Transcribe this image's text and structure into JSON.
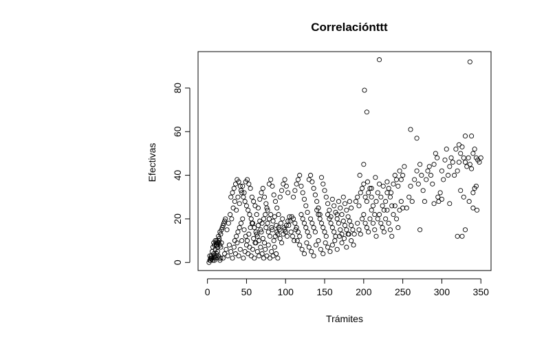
{
  "chart_data": {
    "type": "scatter",
    "title": "Correlaciónttt",
    "xlabel": "Trámites",
    "ylabel": "Efectivas",
    "xlim": [
      -12,
      363
    ],
    "ylim": [
      -3.7,
      96.7
    ],
    "xticks": [
      0,
      50,
      100,
      150,
      200,
      250,
      300,
      350
    ],
    "yticks": [
      0,
      20,
      40,
      60,
      80
    ],
    "x_tick_labels": [
      "0",
      "50",
      "100",
      "150",
      "200",
      "250",
      "300",
      "350"
    ],
    "y_tick_labels": [
      "0",
      "20",
      "40",
      "60",
      "80"
    ],
    "grid": false,
    "legend": "none",
    "marker": "open-circle",
    "point_color": "#000000",
    "points": [
      [
        2,
        0
      ],
      [
        3,
        1
      ],
      [
        4,
        2
      ],
      [
        5,
        3
      ],
      [
        6,
        2
      ],
      [
        7,
        1
      ],
      [
        8,
        4
      ],
      [
        9,
        3
      ],
      [
        10,
        6
      ],
      [
        11,
        8
      ],
      [
        12,
        10
      ],
      [
        13,
        9
      ],
      [
        14,
        12
      ],
      [
        15,
        11
      ],
      [
        16,
        14
      ],
      [
        17,
        13
      ],
      [
        18,
        15
      ],
      [
        19,
        16
      ],
      [
        20,
        17
      ],
      [
        21,
        18
      ],
      [
        22,
        19
      ],
      [
        23,
        20
      ],
      [
        9,
        8
      ],
      [
        10,
        10
      ],
      [
        11,
        9
      ],
      [
        12,
        8
      ],
      [
        13,
        7
      ],
      [
        14,
        9
      ],
      [
        15,
        10
      ],
      [
        16,
        8
      ],
      [
        17,
        7
      ],
      [
        18,
        9
      ],
      [
        8,
        2
      ],
      [
        9,
        1
      ],
      [
        10,
        2
      ],
      [
        11,
        3
      ],
      [
        12,
        4
      ],
      [
        13,
        5
      ],
      [
        14,
        3
      ],
      [
        15,
        2
      ],
      [
        16,
        1
      ],
      [
        17,
        2
      ],
      [
        6,
        5
      ],
      [
        7,
        7
      ],
      [
        8,
        9
      ],
      [
        4,
        1
      ],
      [
        5,
        2
      ],
      [
        3,
        3
      ],
      [
        20,
        2
      ],
      [
        22,
        4
      ],
      [
        24,
        6
      ],
      [
        26,
        3
      ],
      [
        28,
        8
      ],
      [
        30,
        5
      ],
      [
        32,
        2
      ],
      [
        34,
        7
      ],
      [
        36,
        4
      ],
      [
        38,
        9
      ],
      [
        40,
        3
      ],
      [
        42,
        6
      ],
      [
        44,
        10
      ],
      [
        46,
        2
      ],
      [
        48,
        5
      ],
      [
        50,
        8
      ],
      [
        52,
        4
      ],
      [
        54,
        7
      ],
      [
        56,
        3
      ],
      [
        58,
        6
      ],
      [
        60,
        2
      ],
      [
        62,
        9
      ],
      [
        64,
        5
      ],
      [
        66,
        3
      ],
      [
        68,
        7
      ],
      [
        70,
        4
      ],
      [
        72,
        2
      ],
      [
        74,
        6
      ],
      [
        76,
        3
      ],
      [
        78,
        8
      ],
      [
        80,
        2
      ],
      [
        82,
        5
      ],
      [
        84,
        3
      ],
      [
        86,
        7
      ],
      [
        88,
        4
      ],
      [
        90,
        2
      ],
      [
        25,
        15
      ],
      [
        27,
        18
      ],
      [
        29,
        22
      ],
      [
        31,
        20
      ],
      [
        33,
        25
      ],
      [
        35,
        28
      ],
      [
        37,
        24
      ],
      [
        39,
        30
      ],
      [
        41,
        27
      ],
      [
        43,
        33
      ],
      [
        45,
        35
      ],
      [
        47,
        32
      ],
      [
        49,
        37
      ],
      [
        51,
        38
      ],
      [
        53,
        36
      ],
      [
        55,
        34
      ],
      [
        57,
        30
      ],
      [
        59,
        28
      ],
      [
        61,
        26
      ],
      [
        63,
        22
      ],
      [
        65,
        25
      ],
      [
        67,
        29
      ],
      [
        69,
        32
      ],
      [
        71,
        34
      ],
      [
        73,
        30
      ],
      [
        75,
        27
      ],
      [
        77,
        24
      ],
      [
        79,
        36
      ],
      [
        81,
        38
      ],
      [
        83,
        35
      ],
      [
        85,
        31
      ],
      [
        87,
        28
      ],
      [
        89,
        25
      ],
      [
        91,
        22
      ],
      [
        93,
        30
      ],
      [
        95,
        33
      ],
      [
        97,
        36
      ],
      [
        99,
        38
      ],
      [
        101,
        35
      ],
      [
        103,
        32
      ],
      [
        30,
        30
      ],
      [
        32,
        32
      ],
      [
        34,
        34
      ],
      [
        36,
        36
      ],
      [
        38,
        38
      ],
      [
        40,
        37
      ],
      [
        42,
        35
      ],
      [
        44,
        32
      ],
      [
        46,
        30
      ],
      [
        48,
        28
      ],
      [
        50,
        26
      ],
      [
        52,
        24
      ],
      [
        54,
        22
      ],
      [
        56,
        20
      ],
      [
        58,
        18
      ],
      [
        60,
        16
      ],
      [
        62,
        14
      ],
      [
        64,
        12
      ],
      [
        66,
        10
      ],
      [
        68,
        15
      ],
      [
        70,
        18
      ],
      [
        72,
        20
      ],
      [
        74,
        22
      ],
      [
        76,
        25
      ],
      [
        78,
        14
      ],
      [
        80,
        12
      ],
      [
        82,
        16
      ],
      [
        84,
        19
      ],
      [
        86,
        21
      ],
      [
        88,
        17
      ],
      [
        90,
        13
      ],
      [
        92,
        15
      ],
      [
        94,
        18
      ],
      [
        96,
        20
      ],
      [
        98,
        16
      ],
      [
        100,
        14
      ],
      [
        102,
        12
      ],
      [
        104,
        17
      ],
      [
        106,
        19
      ],
      [
        108,
        21
      ],
      [
        35,
        10
      ],
      [
        37,
        12
      ],
      [
        39,
        14
      ],
      [
        41,
        16
      ],
      [
        43,
        18
      ],
      [
        45,
        20
      ],
      [
        47,
        15
      ],
      [
        49,
        12
      ],
      [
        51,
        10
      ],
      [
        53,
        13
      ],
      [
        55,
        16
      ],
      [
        57,
        18
      ],
      [
        59,
        11
      ],
      [
        61,
        9
      ],
      [
        63,
        13
      ],
      [
        65,
        17
      ],
      [
        67,
        19
      ],
      [
        69,
        14
      ],
      [
        71,
        11
      ],
      [
        73,
        9
      ],
      [
        75,
        16
      ],
      [
        77,
        18
      ],
      [
        79,
        20
      ],
      [
        81,
        22
      ],
      [
        83,
        15
      ],
      [
        85,
        10
      ],
      [
        87,
        12
      ],
      [
        89,
        14
      ],
      [
        91,
        16
      ],
      [
        93,
        11
      ],
      [
        95,
        9
      ],
      [
        97,
        13
      ],
      [
        99,
        15
      ],
      [
        101,
        17
      ],
      [
        103,
        19
      ],
      [
        105,
        21
      ],
      [
        107,
        14
      ],
      [
        109,
        12
      ],
      [
        111,
        10
      ],
      [
        113,
        15
      ],
      [
        110,
        30
      ],
      [
        112,
        33
      ],
      [
        114,
        36
      ],
      [
        116,
        38
      ],
      [
        118,
        40
      ],
      [
        120,
        35
      ],
      [
        122,
        32
      ],
      [
        124,
        29
      ],
      [
        126,
        26
      ],
      [
        128,
        23
      ],
      [
        130,
        38
      ],
      [
        132,
        40
      ],
      [
        134,
        37
      ],
      [
        136,
        34
      ],
      [
        138,
        31
      ],
      [
        140,
        28
      ],
      [
        142,
        25
      ],
      [
        144,
        22
      ],
      [
        146,
        39
      ],
      [
        148,
        36
      ],
      [
        150,
        33
      ],
      [
        152,
        30
      ],
      [
        154,
        27
      ],
      [
        156,
        24
      ],
      [
        158,
        21
      ],
      [
        160,
        29
      ],
      [
        162,
        26
      ],
      [
        164,
        23
      ],
      [
        166,
        20
      ],
      [
        168,
        28
      ],
      [
        170,
        25
      ],
      [
        172,
        22
      ],
      [
        174,
        30
      ],
      [
        176,
        27
      ],
      [
        178,
        24
      ],
      [
        180,
        21
      ],
      [
        182,
        28
      ],
      [
        184,
        25
      ],
      [
        110,
        20
      ],
      [
        112,
        18
      ],
      [
        114,
        16
      ],
      [
        116,
        14
      ],
      [
        118,
        12
      ],
      [
        120,
        22
      ],
      [
        122,
        20
      ],
      [
        124,
        18
      ],
      [
        126,
        16
      ],
      [
        128,
        14
      ],
      [
        130,
        12
      ],
      [
        132,
        20
      ],
      [
        134,
        18
      ],
      [
        136,
        16
      ],
      [
        138,
        14
      ],
      [
        140,
        24
      ],
      [
        142,
        22
      ],
      [
        144,
        20
      ],
      [
        146,
        18
      ],
      [
        148,
        16
      ],
      [
        150,
        14
      ],
      [
        152,
        12
      ],
      [
        154,
        22
      ],
      [
        156,
        20
      ],
      [
        158,
        18
      ],
      [
        160,
        16
      ],
      [
        162,
        14
      ],
      [
        164,
        12
      ],
      [
        166,
        22
      ],
      [
        168,
        18
      ],
      [
        170,
        15
      ],
      [
        172,
        13
      ],
      [
        174,
        19
      ],
      [
        176,
        17
      ],
      [
        178,
        15
      ],
      [
        180,
        13
      ],
      [
        182,
        19
      ],
      [
        184,
        17
      ],
      [
        186,
        15
      ],
      [
        188,
        13
      ],
      [
        115,
        10
      ],
      [
        118,
        8
      ],
      [
        121,
        6
      ],
      [
        124,
        4
      ],
      [
        127,
        9
      ],
      [
        130,
        7
      ],
      [
        133,
        5
      ],
      [
        136,
        3
      ],
      [
        139,
        8
      ],
      [
        142,
        10
      ],
      [
        145,
        6
      ],
      [
        148,
        4
      ],
      [
        151,
        9
      ],
      [
        154,
        7
      ],
      [
        157,
        5
      ],
      [
        160,
        8
      ],
      [
        163,
        10
      ],
      [
        166,
        6
      ],
      [
        169,
        12
      ],
      [
        172,
        9
      ],
      [
        175,
        11
      ],
      [
        178,
        7
      ],
      [
        181,
        13
      ],
      [
        184,
        10
      ],
      [
        187,
        8
      ],
      [
        190,
        28
      ],
      [
        192,
        30
      ],
      [
        194,
        26
      ],
      [
        196,
        32
      ],
      [
        198,
        34
      ],
      [
        200,
        36
      ],
      [
        202,
        30
      ],
      [
        204,
        28
      ],
      [
        206,
        32
      ],
      [
        208,
        34
      ],
      [
        210,
        30
      ],
      [
        212,
        26
      ],
      [
        214,
        22
      ],
      [
        216,
        28
      ],
      [
        218,
        32
      ],
      [
        220,
        36
      ],
      [
        222,
        30
      ],
      [
        224,
        26
      ],
      [
        226,
        24
      ],
      [
        228,
        28
      ],
      [
        230,
        32
      ],
      [
        232,
        34
      ],
      [
        234,
        30
      ],
      [
        236,
        26
      ],
      [
        238,
        36
      ],
      [
        240,
        40
      ],
      [
        242,
        38
      ],
      [
        244,
        35
      ],
      [
        246,
        42
      ],
      [
        248,
        38
      ],
      [
        250,
        40
      ],
      [
        252,
        44
      ],
      [
        192,
        18
      ],
      [
        194,
        15
      ],
      [
        196,
        13
      ],
      [
        198,
        20
      ],
      [
        200,
        22
      ],
      [
        202,
        18
      ],
      [
        204,
        16
      ],
      [
        206,
        14
      ],
      [
        208,
        20
      ],
      [
        210,
        24
      ],
      [
        212,
        18
      ],
      [
        214,
        15
      ],
      [
        216,
        12
      ],
      [
        218,
        20
      ],
      [
        220,
        22
      ],
      [
        222,
        18
      ],
      [
        224,
        16
      ],
      [
        226,
        14
      ],
      [
        228,
        20
      ],
      [
        230,
        24
      ],
      [
        232,
        18
      ],
      [
        234,
        15
      ],
      [
        236,
        12
      ],
      [
        238,
        22
      ],
      [
        240,
        26
      ],
      [
        242,
        20
      ],
      [
        244,
        16
      ],
      [
        246,
        24
      ],
      [
        248,
        28
      ],
      [
        250,
        25
      ],
      [
        195,
        40
      ],
      [
        200,
        45
      ],
      [
        205,
        37
      ],
      [
        210,
        34
      ],
      [
        215,
        39
      ],
      [
        225,
        35
      ],
      [
        230,
        37
      ],
      [
        235,
        32
      ],
      [
        201,
        79
      ],
      [
        204,
        69
      ],
      [
        220,
        93
      ],
      [
        255,
        25
      ],
      [
        258,
        30
      ],
      [
        260,
        35
      ],
      [
        262,
        28
      ],
      [
        265,
        38
      ],
      [
        268,
        42
      ],
      [
        270,
        36
      ],
      [
        272,
        45
      ],
      [
        274,
        40
      ],
      [
        276,
        33
      ],
      [
        278,
        28
      ],
      [
        280,
        38
      ],
      [
        282,
        42
      ],
      [
        284,
        44
      ],
      [
        286,
        40
      ],
      [
        288,
        36
      ],
      [
        290,
        45
      ],
      [
        292,
        50
      ],
      [
        294,
        48
      ],
      [
        296,
        28
      ],
      [
        298,
        32
      ],
      [
        300,
        42
      ],
      [
        302,
        38
      ],
      [
        304,
        47
      ],
      [
        306,
        52
      ],
      [
        308,
        40
      ],
      [
        310,
        44
      ],
      [
        312,
        48
      ],
      [
        314,
        46
      ],
      [
        316,
        40
      ],
      [
        318,
        52
      ],
      [
        320,
        42
      ],
      [
        322,
        46
      ],
      [
        324,
        50
      ],
      [
        326,
        53
      ],
      [
        328,
        48
      ],
      [
        330,
        46
      ],
      [
        332,
        44
      ],
      [
        334,
        48
      ],
      [
        336,
        45
      ],
      [
        338,
        43
      ],
      [
        340,
        50
      ],
      [
        342,
        52
      ],
      [
        344,
        48
      ],
      [
        346,
        47
      ],
      [
        348,
        46
      ],
      [
        350,
        48
      ],
      [
        260,
        61
      ],
      [
        268,
        57
      ],
      [
        272,
        15
      ],
      [
        290,
        27
      ],
      [
        295,
        30
      ],
      [
        300,
        29
      ],
      [
        310,
        27
      ],
      [
        320,
        12
      ],
      [
        324,
        33
      ],
      [
        326,
        12
      ],
      [
        328,
        30
      ],
      [
        330,
        15
      ],
      [
        335,
        28
      ],
      [
        338,
        58
      ],
      [
        340,
        25
      ],
      [
        342,
        34
      ],
      [
        344,
        35
      ],
      [
        345,
        24
      ],
      [
        340,
        32
      ],
      [
        336,
        92
      ],
      [
        330,
        58
      ],
      [
        322,
        54
      ]
    ]
  }
}
